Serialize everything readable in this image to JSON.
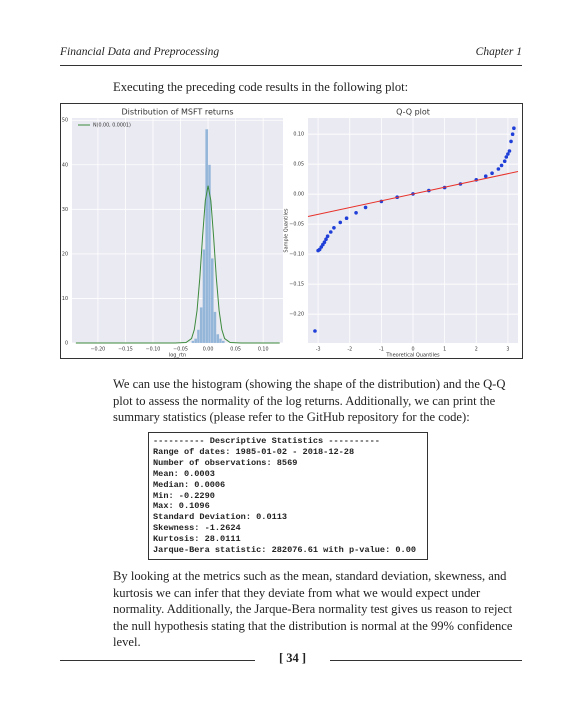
{
  "header": {
    "left": "Financial Data and Preprocessing",
    "right": "Chapter 1"
  },
  "intro": "Executing the preceding code results in the following plot:",
  "chart_data": [
    {
      "type": "histogram",
      "title": "Distribution of MSFT returns",
      "xlabel": "log_rtn",
      "color": "#94b6d9",
      "bins": [
        -0.03,
        -0.025,
        -0.02,
        -0.015,
        -0.01,
        -0.005,
        0,
        0.005,
        0.01,
        0.015,
        0.02,
        0.025,
        0.03
      ],
      "values": [
        0.5,
        1,
        3,
        8,
        21,
        48,
        40,
        19,
        7,
        2,
        1,
        0.5
      ],
      "curve": {
        "name": "N(0.00, 0.0001)",
        "color": "#3c8a3c",
        "x": [
          -0.24,
          -0.06,
          -0.04,
          -0.03,
          -0.025,
          -0.02,
          -0.015,
          -0.01,
          -0.005,
          0,
          0.005,
          0.01,
          0.015,
          0.02,
          0.025,
          0.03,
          0.04,
          0.06,
          0.13
        ],
        "values": [
          0,
          0,
          0.1,
          1.0,
          3.0,
          7.3,
          14.6,
          23.9,
          32.0,
          35.3,
          32.0,
          23.9,
          14.6,
          7.3,
          3.0,
          1.0,
          0.1,
          0,
          0
        ]
      },
      "xlim": [
        -0.247,
        0.136
      ],
      "ylim": [
        0,
        50.5
      ],
      "xticks": [
        {
          "value": -0.2,
          "label": "−0.20"
        },
        {
          "value": -0.15,
          "label": "−0.15"
        },
        {
          "value": -0.1,
          "label": "−0.10"
        },
        {
          "value": -0.05,
          "label": "−0.05"
        },
        {
          "value": 0,
          "label": "0.00"
        },
        {
          "value": 0.05,
          "label": "0.05"
        },
        {
          "value": 0.1,
          "label": "0.10"
        }
      ],
      "yticks": [
        0,
        10,
        20,
        30,
        40,
        50
      ],
      "grid": true
    },
    {
      "type": "scatter",
      "title": "Q-Q plot",
      "xlabel": "Theoretical Quantiles",
      "ylabel": "Sample Quantiles",
      "color": "#1f3fd8",
      "x": [
        -3.1,
        -3.0,
        -2.95,
        -2.9,
        -2.85,
        -2.8,
        -2.75,
        -2.7,
        -2.6,
        -2.5,
        -2.3,
        -2.1,
        -1.8,
        -1.5,
        -1,
        -0.5,
        0,
        0.5,
        1,
        1.5,
        2,
        2.3,
        2.5,
        2.7,
        2.8,
        2.9,
        2.95,
        3.0,
        3.05,
        3.1,
        3.15,
        3.19
      ],
      "values": [
        -0.228,
        -0.094,
        -0.092,
        -0.088,
        -0.084,
        -0.08,
        -0.075,
        -0.07,
        -0.063,
        -0.056,
        -0.047,
        -0.04,
        -0.031,
        -0.022,
        -0.012,
        -0.005,
        0.0005,
        0.006,
        0.011,
        0.017,
        0.024,
        0.03,
        0.035,
        0.042,
        0.048,
        0.055,
        0.062,
        0.067,
        0.072,
        0.088,
        0.1,
        0.11
      ],
      "line": {
        "color": "#e8322a",
        "x": [
          -3.32,
          3.32
        ],
        "values": [
          -0.0372,
          0.0378
        ]
      },
      "xlim": [
        -3.32,
        3.32
      ],
      "ylim": [
        -0.248,
        0.127
      ],
      "xticks": [
        -3,
        -2,
        -1,
        0,
        1,
        2,
        3
      ],
      "yticks": [
        {
          "value": -0.2,
          "label": "−0.20"
        },
        {
          "value": -0.15,
          "label": "−0.15"
        },
        {
          "value": -0.1,
          "label": "−0.10"
        },
        {
          "value": -0.05,
          "label": "−0.05"
        },
        {
          "value": 0,
          "label": "0.00"
        },
        {
          "value": 0.05,
          "label": "0.05"
        },
        {
          "value": 0.1,
          "label": "0.10"
        }
      ],
      "grid": true
    }
  ],
  "paragraphs": [
    "We can use the histogram (showing the shape of the distribution) and the Q-Q plot to assess the normality of the log returns. Additionally, we can print the summary statistics (please refer to the GitHub repository for the code):",
    "By looking at the metrics such as the mean, standard deviation, skewness, and kurtosis we can infer that they deviate from what we would expect under normality. Additionally, the Jarque-Bera normality test gives us reason to reject the null hypothesis stating that the distribution is normal at the 99% confidence level."
  ],
  "code": [
    "---------- Descriptive Statistics ----------",
    "Range of dates: 1985-01-02 - 2018-12-28",
    "Number of observations: 8569",
    "Mean: 0.0003",
    "Median: 0.0006",
    "Min: -0.2290",
    "Max: 0.1096",
    "Standard Deviation: 0.0113",
    "Skewness: -1.2624",
    "Kurtosis: 28.0111",
    "Jarque-Bera statistic: 282076.61 with p-value: 0.00"
  ],
  "page_number": "[ 34 ]"
}
